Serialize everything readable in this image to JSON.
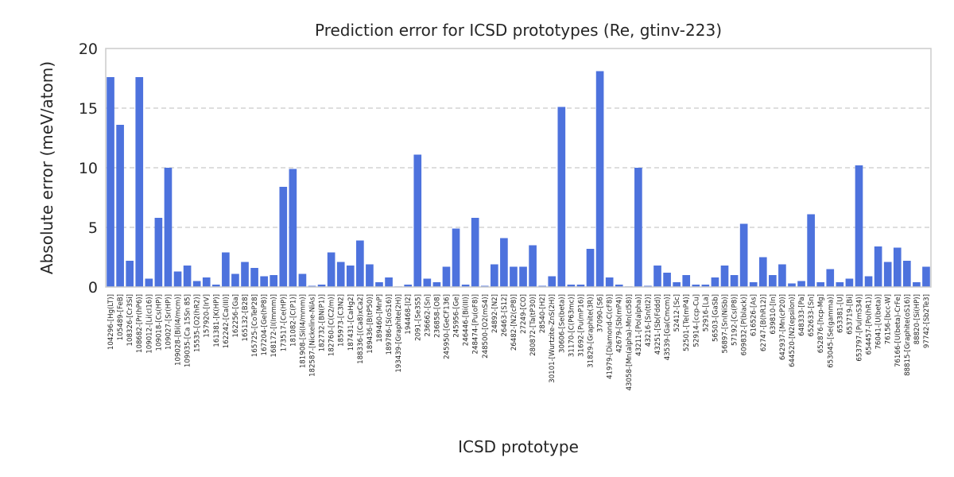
{
  "chart_data": {
    "type": "bar",
    "title": "Prediction error for ICSD prototypes (Re, gtinv-223)",
    "xlabel": "ICSD prototype",
    "ylabel": "Absolute error (meV/atom)",
    "ylim": [
      0,
      20
    ],
    "yticks": [
      "0",
      "5",
      "10",
      "15",
      "20"
    ],
    "grid": "horizontal dashed",
    "color": "#4d72dd",
    "categories": [
      "104296-[Hg(LT)]",
      "105489-[FeB]",
      "108326-[Cr3Si]",
      "108682-[Pr(hP6)]",
      "109012-[Li(cI16)]",
      "109018-[Cs(HP)]",
      "109027-[Sr(HP)]",
      "109028-[Bi(I4/mcm)]",
      "109035-[Ca 15Sn 85]",
      "15535-[O2(hR2)]",
      "157920-[IrV]",
      "161381-[K(HP)]",
      "162242-[Ca(III)]",
      "162256-[Ga]",
      "165132-[B28]",
      "165725-[CoTeP28]",
      "167204-[Ge(hP8)]",
      "168172-[I(Immm)]",
      "173517-[Ce(HP)]",
      "181082-[C(P1)]",
      "181908-[Si(I4/mmm)]",
      "182587-[Nickeline-NiAs]",
      "182732-[BN(P1)]",
      "182760-[C(C2/m)]",
      "185973-[C3N2]",
      "187431-[CaHg2]",
      "188336-[(Ca8)xCa2]",
      "189436-[B(tP50)]",
      "189460-[MnP]",
      "189786-[S(oS16)]",
      "193439-[Graphite(2H)]",
      "194468-[I2]",
      "2091-[Se3S5]",
      "236662-[Sn]",
      "236858-[O8]",
      "245950-[GeCF136]",
      "245956-[Ge]",
      "246446-[Bi(III)]",
      "248474-[Pu(oF8)]",
      "248500-[O2(mS4)]",
      "24892-[N2]",
      "26463-[S12]",
      "26482-[N2(cP8)]",
      "27249-[CO]",
      "280872-[Ta(tP30)]",
      "28540-[H2]",
      "30101-[Wurtzite-ZnS(2H)]",
      "30606-[Se(beta)]",
      "31170-[C(P63mc)]",
      "31692-[Pu(mP16)]",
      "31829-[Graphite(3R)]",
      "37090-[S6]",
      "41979-[Diamond-C(cF8)]",
      "42679-[Sb(mP4)]",
      "43058-[Mn(alpha)-Mn(cI58)]",
      "43211-[Po(alpha)]",
      "43216-[Sn(tI2)]",
      "43251-[Sb(Fddd)]",
      "43539-[Ga(Cmcm)]",
      "52412-[Sc]",
      "52501-[Te(mP4)]",
      "52914-[ccp-Cu]",
      "52916-[La]",
      "56503-[GaSb]",
      "56897-[Sn(NiSb)]",
      "57192-[Cs(P8)]",
      "609832-[P(black)]",
      "616526-[As]",
      "62747-[B(hR12)]",
      "639810-[In]",
      "642937-[Mn(cP20)]",
      "644520-[N2(epsilon)]",
      "648333-[Pa]",
      "652633-[Sn]",
      "652876-[hcp-Mg]",
      "653045-[Se(gamma)]",
      "653381-[U]",
      "653719-[Bi]",
      "653797-[Pu(mS34)]",
      "654457-[Po(hR1)]",
      "76041-[U(beta)]",
      "76156-[bcc-W]",
      "76166-[U(beta)-CrFe]",
      "88815-[Graphite(oS16)]",
      "88820-[Si(HP)]",
      "97742-[Sb2Te3]"
    ],
    "values": [
      17.6,
      13.6,
      2.2,
      17.6,
      0.7,
      5.8,
      10.0,
      1.3,
      1.8,
      0.5,
      0.8,
      0.2,
      2.9,
      1.1,
      2.1,
      1.6,
      0.9,
      1.0,
      8.4,
      9.9,
      1.1,
      0.1,
      0.2,
      2.9,
      2.1,
      1.8,
      3.9,
      1.9,
      0.4,
      0.8,
      0.05,
      0.2,
      11.1,
      0.7,
      0.4,
      1.7,
      4.9,
      0.2,
      5.8,
      0.1,
      1.9,
      4.1,
      1.7,
      1.7,
      3.5,
      0.1,
      0.9,
      15.1,
      0.2,
      0.2,
      3.2,
      18.1,
      0.8,
      0.2,
      0.05,
      10.0,
      0.1,
      1.8,
      1.2,
      0.4,
      1.0,
      0.2,
      0.2,
      0.8,
      1.8,
      1.0,
      5.3,
      0.4,
      2.5,
      1.0,
      1.9,
      0.3,
      0.5,
      6.1,
      0.4,
      1.5,
      0.4,
      0.7,
      10.2,
      0.9,
      3.4,
      2.1,
      3.3,
      2.2,
      0.4,
      1.7
    ]
  }
}
